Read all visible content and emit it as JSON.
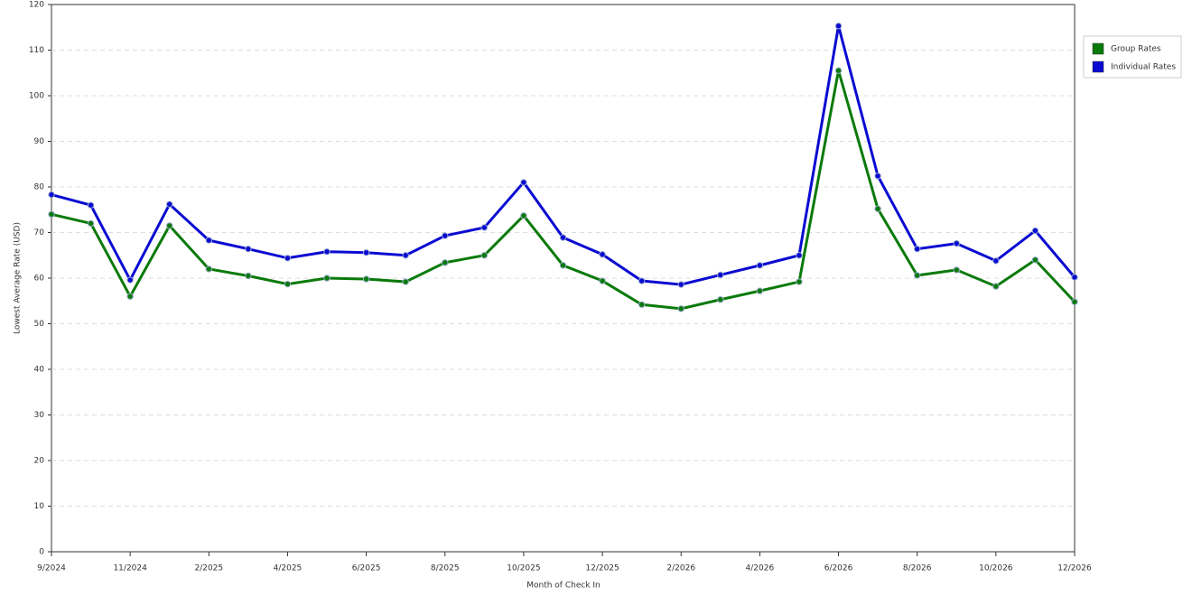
{
  "chart_data": {
    "type": "line",
    "y_label": "Lowest Average Rate (USD)",
    "x_label": "Month of Check In",
    "categories": [
      "9/2024",
      null,
      "11/2024",
      null,
      "2/2025",
      null,
      "4/2025",
      null,
      "6/2025",
      null,
      "8/2025",
      null,
      "10/2025",
      null,
      "12/2025",
      null,
      "2/2026",
      null,
      "4/2026",
      null,
      "6/2026",
      null,
      "8/2026",
      null,
      "10/2026",
      null,
      "12/2026"
    ],
    "series": [
      {
        "name": "Group Rates",
        "color": "#0a7a0a",
        "values": [
          74,
          72,
          56,
          71.5,
          62,
          60.5,
          58.7,
          60,
          59.8,
          59.2,
          63.4,
          65,
          73.7,
          62.8,
          59.4,
          54.2,
          53.3,
          55.3,
          57.2,
          59.2,
          105.5,
          75.2,
          60.6,
          61.8,
          58.2,
          64,
          54.8
        ]
      },
      {
        "name": "Individual Rates",
        "color": "#0a0ad2",
        "values": [
          78.3,
          76,
          59.6,
          76.2,
          68.3,
          66.4,
          64.4,
          65.8,
          65.6,
          65,
          69.3,
          71.1,
          81,
          68.9,
          65.2,
          59.4,
          58.6,
          60.7,
          62.8,
          65,
          115.3,
          82.4,
          66.4,
          67.6,
          63.8,
          70.4,
          60.2
        ]
      }
    ],
    "ylim": [
      0,
      120
    ],
    "yticks": [
      0,
      10,
      20,
      30,
      40,
      50,
      60,
      70,
      80,
      90,
      100,
      110,
      120
    ],
    "grid": true,
    "legend": "right"
  }
}
